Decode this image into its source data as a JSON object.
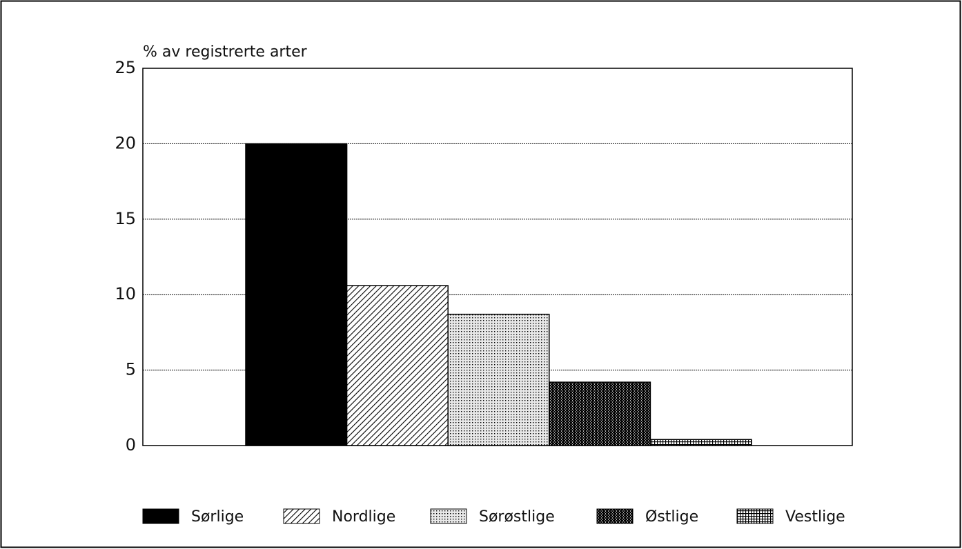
{
  "chart_data": {
    "type": "bar",
    "y_label": "% av registrerte arter",
    "categories": [
      null
    ],
    "series": [
      {
        "name": "Sørlige",
        "color": "#000000",
        "values": [
          20
        ]
      },
      {
        "name": "Nordlige",
        "color": "#222222",
        "values": [
          10.6
        ]
      },
      {
        "name": "Sørøstlige",
        "color": "#555555",
        "values": [
          8.7
        ]
      },
      {
        "name": "Østlige",
        "color": "#111111",
        "values": [
          4.2
        ]
      },
      {
        "name": "Vestlige",
        "color": "#333333",
        "values": [
          0.4
        ]
      }
    ],
    "ylim": [
      0,
      25
    ],
    "yticks": [
      0,
      5,
      10,
      15,
      20,
      25
    ],
    "grid": true
  }
}
